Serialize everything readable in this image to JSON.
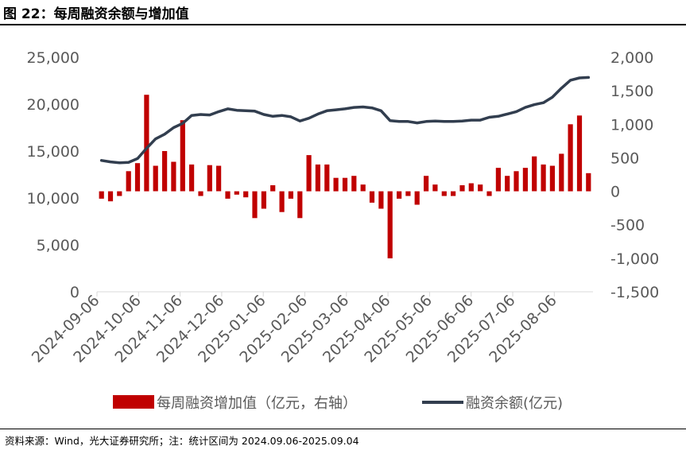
{
  "figure": {
    "title": "图 22：每周融资余额与增加值",
    "source": "资料来源：Wind，光大证券研究所；注：统计区间为 2024.09.06-2025.09.04"
  },
  "colors": {
    "bar": "#C00000",
    "line": "#323E4F",
    "axis_text": "#595959"
  },
  "chart_data": {
    "type": "bar+line",
    "x_tick_labels": [
      "2024-09-06",
      "2024-10-06",
      "2024-11-06",
      "2024-12-06",
      "2025-01-06",
      "2025-02-06",
      "2025-03-06",
      "2025-04-06",
      "2025-05-06",
      "2025-06-06",
      "2025-07-06",
      "2025-08-06"
    ],
    "left_axis": {
      "ylim": [
        0,
        25000
      ],
      "ticks": [
        "0",
        "5,000",
        "10,000",
        "15,000",
        "20,000",
        "25,000"
      ],
      "tick_values": [
        0,
        5000,
        10000,
        15000,
        20000,
        25000
      ]
    },
    "right_axis": {
      "ylim": [
        -1500,
        2000
      ],
      "ticks": [
        "-1,500",
        "-1,000",
        "-500",
        "0",
        "500",
        "1,000",
        "1,500",
        "2,000"
      ],
      "tick_values": [
        -1500,
        -1000,
        -500,
        0,
        500,
        1000,
        1500,
        2000
      ]
    },
    "series": [
      {
        "name": "每周融资增加值（亿元，右轴）",
        "type": "bar",
        "axis": "right",
        "values": [
          -110,
          -150,
          -70,
          300,
          420,
          1440,
          380,
          600,
          440,
          1060,
          400,
          -70,
          390,
          380,
          -110,
          -50,
          -90,
          -400,
          -260,
          90,
          -310,
          -110,
          -400,
          540,
          400,
          400,
          200,
          200,
          230,
          100,
          -170,
          -260,
          -1000,
          -110,
          -70,
          -200,
          230,
          100,
          -70,
          -70,
          90,
          120,
          100,
          -70,
          350,
          230,
          300,
          350,
          520,
          400,
          380,
          560,
          1000,
          1130,
          270
        ],
        "color": "#C00000"
      },
      {
        "name": "融资余额(亿元)",
        "type": "line",
        "axis": "left",
        "values": [
          14000,
          13850,
          13750,
          13800,
          14200,
          15300,
          16300,
          16800,
          17500,
          17950,
          18800,
          18900,
          18850,
          19200,
          19500,
          19350,
          19300,
          19250,
          18900,
          18700,
          18800,
          18650,
          18200,
          18500,
          18950,
          19300,
          19400,
          19500,
          19650,
          19700,
          19600,
          19300,
          18250,
          18150,
          18150,
          18000,
          18150,
          18200,
          18150,
          18150,
          18200,
          18300,
          18300,
          18600,
          18700,
          18950,
          19200,
          19650,
          19950,
          20150,
          20750,
          21700,
          22550,
          22800,
          22850
        ],
        "color": "#323E4F"
      }
    ],
    "legend_position": "bottom",
    "grid": false
  }
}
